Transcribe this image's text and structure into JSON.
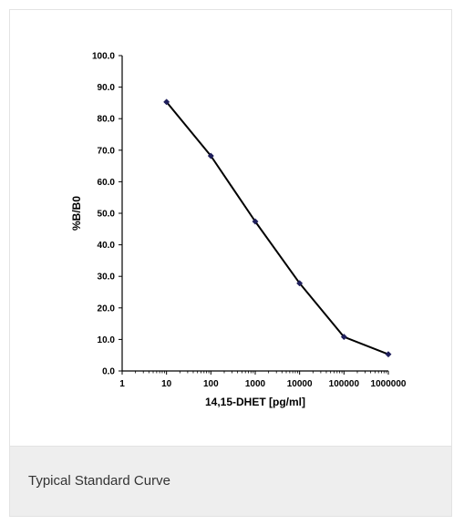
{
  "caption": "Typical Standard Curve",
  "chart_data": {
    "type": "line",
    "xscale": "log",
    "xlabel": "14,15-DHET [pg/ml]",
    "ylabel": "%B/B0",
    "xlim": [
      1,
      1000000
    ],
    "ylim": [
      0,
      100
    ],
    "x_ticks": [
      1,
      10,
      100,
      1000,
      10000,
      100000,
      1000000
    ],
    "x_tick_labels": [
      "1",
      "10",
      "100",
      "1000",
      "10000",
      "100000",
      "1000000"
    ],
    "y_ticks": [
      0,
      10,
      20,
      30,
      40,
      50,
      60,
      70,
      80,
      90,
      100
    ],
    "y_tick_labels": [
      "0.0",
      "10.0",
      "20.0",
      "30.0",
      "40.0",
      "50.0",
      "60.0",
      "70.0",
      "80.0",
      "90.0",
      "100.0"
    ],
    "grid": false,
    "line_color": "#000000",
    "marker_color": "#1f1f5c",
    "series": [
      {
        "x": [
          10,
          100,
          1000,
          10000,
          100000,
          1000000
        ],
        "y": [
          85.3,
          68.2,
          47.4,
          27.8,
          10.8,
          5.3
        ]
      }
    ]
  }
}
